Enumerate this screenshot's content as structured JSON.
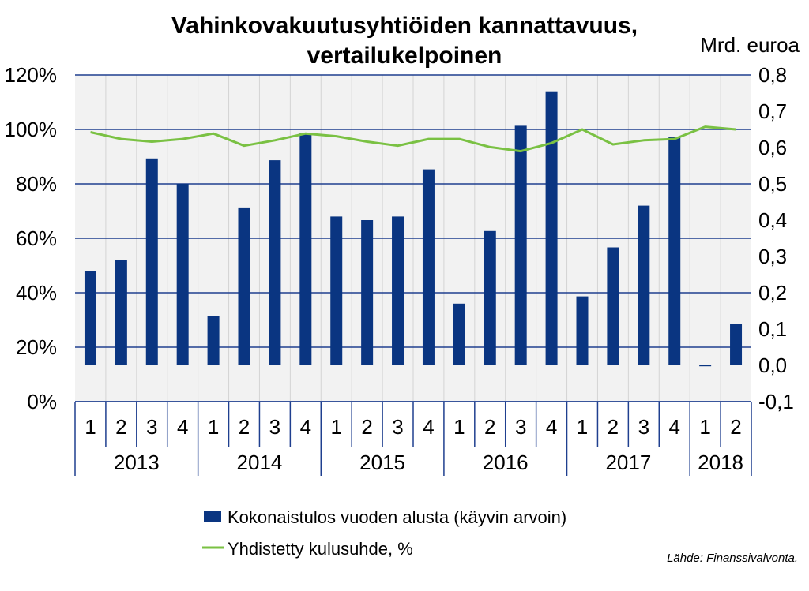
{
  "chart_data": {
    "type": "bar",
    "title": "Vahinkovakuutusyhtiöiden kannattavuus,",
    "subtitle": "vertailukelpoinen",
    "y2_unit_label": "Mrd. euroa",
    "source": "Lähde: Finanssivalvonta.",
    "quarters": [
      "1",
      "2",
      "3",
      "4",
      "1",
      "2",
      "3",
      "4",
      "1",
      "2",
      "3",
      "4",
      "1",
      "2",
      "3",
      "4",
      "1",
      "2",
      "3",
      "4",
      "1",
      "2"
    ],
    "years": [
      {
        "label": "2013",
        "span": 4
      },
      {
        "label": "2014",
        "span": 4
      },
      {
        "label": "2015",
        "span": 4
      },
      {
        "label": "2016",
        "span": 4
      },
      {
        "label": "2017",
        "span": 4
      },
      {
        "label": "2018",
        "span": 2
      }
    ],
    "y_left": {
      "ticks": [
        "0%",
        "20%",
        "40%",
        "60%",
        "80%",
        "100%",
        "120%"
      ],
      "min": 0,
      "max": 120
    },
    "y_right": {
      "ticks": [
        "-0,1",
        "0,0",
        "0,1",
        "0,2",
        "0,3",
        "0,4",
        "0,5",
        "0,6",
        "0,7",
        "0,8"
      ],
      "min": -0.1,
      "max": 0.8
    },
    "series": [
      {
        "name": "Kokonaistulos vuoden alusta (käyvin arvoin)",
        "kind": "bar",
        "axis": "right",
        "color": "#0a3581",
        "values": [
          0.26,
          0.29,
          0.57,
          0.5,
          0.135,
          0.435,
          0.565,
          0.64,
          0.41,
          0.4,
          0.41,
          0.54,
          0.17,
          0.37,
          0.66,
          0.755,
          0.19,
          0.325,
          0.44,
          0.63,
          -0.002,
          0.115
        ]
      },
      {
        "name": "Yhdistetty kulusuhde, %",
        "kind": "line",
        "axis": "left",
        "color": "#7ac143",
        "values": [
          99,
          96.5,
          95.5,
          96.5,
          98.5,
          94,
          96,
          98.5,
          97.5,
          95.5,
          94,
          96.5,
          96.5,
          93.5,
          92,
          95,
          100,
          94.5,
          96,
          96.5,
          101,
          100
        ]
      }
    ],
    "grid": true,
    "legend_position": "bottom"
  }
}
